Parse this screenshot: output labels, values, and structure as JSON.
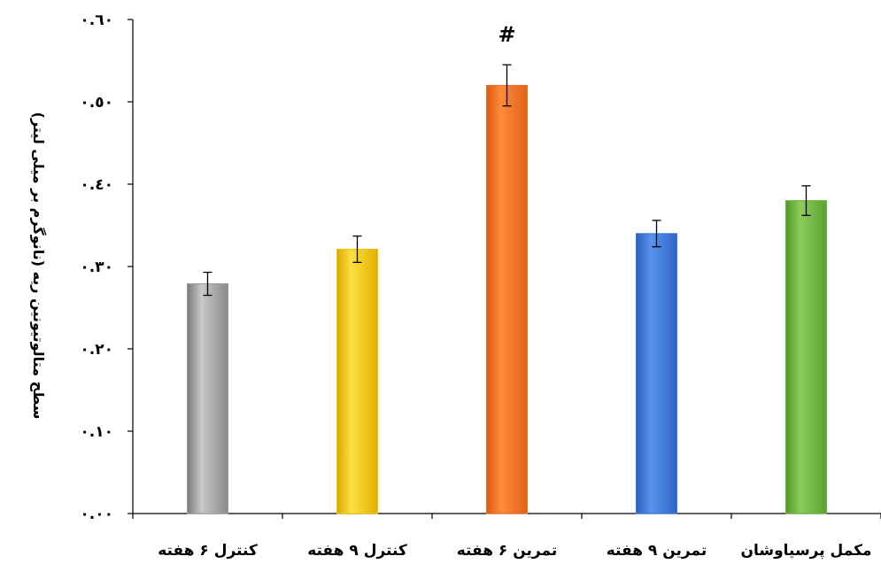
{
  "chart_data": {
    "type": "bar",
    "ylabel": "سطح متالوتیونین ریه (نانوگرم بر میلی لیتر)",
    "ylim": [
      0,
      0.6
    ],
    "ytick_values": [
      0,
      0.1,
      0.2,
      0.3,
      0.4,
      0.5,
      0.6
    ],
    "ytick_labels": [
      "٠.٠٠",
      "٠.١٠",
      "٠.٢٠",
      "٠.٣٠",
      "٠.٤٠",
      "٠.٥٠",
      "٠.٦٠"
    ],
    "categories": [
      "کنترل ۶ هفته",
      "کنترل ۹ هفته",
      "تمرین ۶ هفته",
      "تمرین ۹ هفته",
      "مکمل پرسیاوشان"
    ],
    "values": [
      0.279,
      0.321,
      0.52,
      0.34,
      0.38
    ],
    "errors": [
      0.014,
      0.016,
      0.025,
      0.016,
      0.018
    ],
    "colors": [
      "#9a9a9a",
      "#f2c200",
      "#f07020",
      "#3a78d8",
      "#6ab23c"
    ],
    "grid": false,
    "legend": "none",
    "annotations": [
      {
        "category_index": 2,
        "text": "#"
      }
    ]
  }
}
